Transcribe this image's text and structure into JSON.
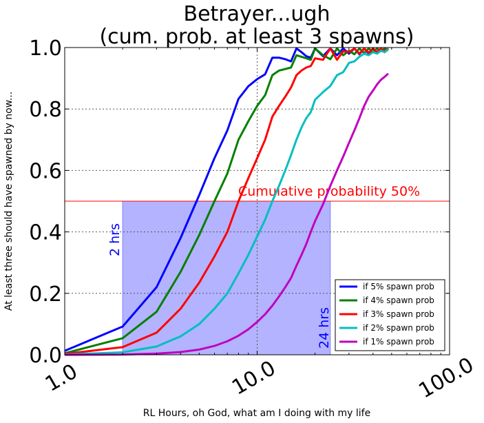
{
  "chart_data": {
    "type": "line",
    "title": [
      "Betrayer...ugh",
      "(cum. prob. at least 3 spawns)"
    ],
    "xlabel": "RL Hours, oh God, what am I doing with my life",
    "ylabel": "At least three should have spawned by now...",
    "xscale": "log",
    "xlim": [
      1.0,
      100.0
    ],
    "ylim": [
      0.0,
      1.0
    ],
    "xticks": [
      "1.0",
      "10.0",
      "100.0"
    ],
    "yticks": [
      "0.0",
      "0.2",
      "0.4",
      "0.6",
      "0.8",
      "1.0"
    ],
    "grid": true,
    "legend_position": "lower-right",
    "threshold": {
      "y": 0.5,
      "label": "Cumulative probability 50%",
      "color": "#ff0000"
    },
    "shaded_region": {
      "x": [
        2.0,
        24.0
      ],
      "y": [
        0.0,
        0.5
      ],
      "color": "#b3b3ff"
    },
    "annotations": [
      {
        "text": "2 hrs",
        "color": "#0000ff"
      },
      {
        "text": "24 hrs",
        "color": "#0000ff"
      }
    ],
    "series": [
      {
        "name": "if 5% spawn prob",
        "color": "#0000ff",
        "x": [
          1.0,
          2.0,
          3.0,
          4.0,
          5.0,
          6.0,
          7.0,
          8.0,
          9.0,
          10.0,
          11.0,
          12.0,
          13.0,
          14.0,
          15.0,
          16.0,
          17.0,
          18.0,
          19.0,
          20.0,
          22.0,
          24.0,
          26.0,
          28.0,
          30.0,
          32.0,
          34.0,
          36.0,
          38.0,
          40.0,
          42.0,
          44.0,
          46.0,
          48.0
        ],
        "y": [
          0.013,
          0.092,
          0.22,
          0.38,
          0.52,
          0.64,
          0.73,
          0.833,
          0.874,
          0.897,
          0.913,
          0.967,
          0.967,
          0.962,
          0.955,
          0.997,
          0.985,
          0.972,
          0.967,
          0.997,
          0.972,
          0.997,
          0.975,
          0.997,
          0.98,
          0.997,
          0.978,
          0.997,
          0.98,
          0.997,
          0.982,
          0.997,
          0.985,
          0.997
        ]
      },
      {
        "name": "if 4% spawn prob",
        "color": "#008000",
        "x": [
          1.0,
          2.0,
          3.0,
          4.0,
          5.0,
          6.0,
          7.0,
          8.0,
          9.0,
          10.0,
          11.0,
          12.0,
          13.0,
          14.0,
          15.0,
          16.0,
          17.0,
          18.0,
          19.0,
          20.0,
          22.0,
          24.0,
          26.0,
          28.0,
          30.0,
          32.0,
          34.0,
          36.0,
          38.0,
          40.0,
          42.0,
          44.0,
          46.0,
          48.0
        ],
        "y": [
          0.005,
          0.054,
          0.14,
          0.27,
          0.39,
          0.5,
          0.59,
          0.7,
          0.76,
          0.81,
          0.845,
          0.91,
          0.925,
          0.93,
          0.935,
          0.975,
          0.97,
          0.965,
          0.96,
          0.997,
          0.975,
          0.962,
          0.997,
          0.975,
          0.99,
          0.978,
          0.997,
          0.982,
          0.997,
          0.985,
          0.997,
          0.988,
          0.997,
          0.99
        ]
      },
      {
        "name": "if 3% spawn prob",
        "color": "#ff0000",
        "x": [
          1.0,
          2.0,
          3.0,
          4.0,
          5.0,
          6.0,
          7.0,
          8.0,
          9.0,
          10.0,
          11.0,
          12.0,
          13.0,
          14.0,
          15.0,
          16.0,
          17.0,
          18.0,
          19.0,
          20.0,
          22.0,
          24.0,
          26.0,
          28.0,
          30.0,
          32.0,
          34.0,
          36.0,
          38.0,
          40.0,
          42.0,
          44.0,
          46.0,
          48.0
        ],
        "y": [
          0.003,
          0.025,
          0.072,
          0.15,
          0.235,
          0.32,
          0.4,
          0.5,
          0.575,
          0.64,
          0.7,
          0.775,
          0.81,
          0.84,
          0.87,
          0.91,
          0.925,
          0.935,
          0.94,
          0.965,
          0.96,
          0.997,
          0.96,
          0.988,
          0.985,
          0.997,
          0.98,
          0.997,
          0.983,
          0.997,
          0.985,
          0.997,
          0.988,
          0.997
        ]
      },
      {
        "name": "if 2% spawn prob",
        "color": "#00bfbf",
        "x": [
          1.0,
          2.0,
          3.0,
          4.0,
          5.0,
          6.0,
          7.0,
          8.0,
          9.0,
          10.0,
          11.0,
          12.0,
          13.0,
          14.0,
          15.0,
          16.0,
          17.0,
          18.0,
          19.0,
          20.0,
          22.0,
          24.0,
          26.0,
          28.0,
          30.0,
          32.0,
          34.0,
          36.0,
          38.0,
          40.0,
          42.0,
          44.0,
          46.0,
          48.0
        ],
        "y": [
          0.001,
          0.008,
          0.027,
          0.06,
          0.1,
          0.15,
          0.2,
          0.265,
          0.325,
          0.385,
          0.44,
          0.5,
          0.55,
          0.6,
          0.65,
          0.7,
          0.74,
          0.77,
          0.79,
          0.83,
          0.855,
          0.875,
          0.91,
          0.92,
          0.95,
          0.955,
          0.97,
          0.98,
          0.975,
          0.985,
          0.98,
          0.99,
          0.985,
          0.995
        ]
      },
      {
        "name": "if 1% spawn prob",
        "color": "#bf00bf",
        "x": [
          1.0,
          2.0,
          3.0,
          4.0,
          5.0,
          6.0,
          7.0,
          8.0,
          9.0,
          10.0,
          11.0,
          12.0,
          13.0,
          14.0,
          15.0,
          16.0,
          17.0,
          18.0,
          19.0,
          20.0,
          22.0,
          24.0,
          26.0,
          28.0,
          30.0,
          32.0,
          34.0,
          36.0,
          38.0,
          40.0,
          42.0,
          44.0,
          46.0,
          48.0
        ],
        "y": [
          0.0,
          0.001,
          0.004,
          0.009,
          0.017,
          0.029,
          0.044,
          0.062,
          0.083,
          0.107,
          0.132,
          0.16,
          0.19,
          0.22,
          0.25,
          0.29,
          0.325,
          0.36,
          0.4,
          0.435,
          0.49,
          0.55,
          0.6,
          0.645,
          0.69,
          0.73,
          0.77,
          0.81,
          0.84,
          0.86,
          0.88,
          0.895,
          0.905,
          0.915
        ]
      }
    ]
  }
}
